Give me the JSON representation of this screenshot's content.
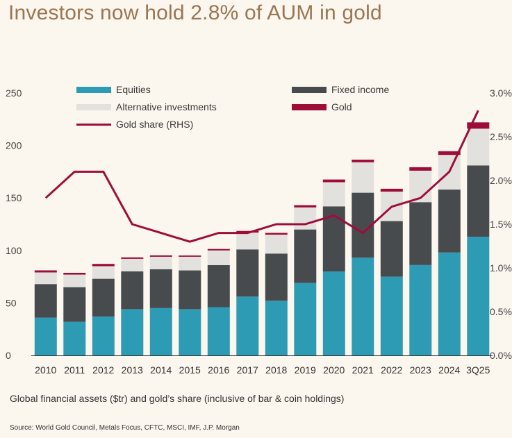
{
  "title": "Investors now hold 2.8% of AUM in gold",
  "caption": "Global financial assets ($tr) and gold’s share (inclusive of bar & coin holdings)",
  "source": "Source: World Gold Council, Metals Focus, CFTC, MSCI, IMF, J.P. Morgan",
  "colors": {
    "equities": "#2e9bb5",
    "fixed_income": "#484b4e",
    "alternatives": "#e3e1de",
    "gold": "#9e0d3a",
    "gold_share": "#9e0d3a",
    "background": "#fbf6ee",
    "title": "#9a7652"
  },
  "legend": [
    {
      "key": "equities",
      "label": "Equities",
      "kind": "bar"
    },
    {
      "key": "fixed_income",
      "label": "Fixed income",
      "kind": "bar"
    },
    {
      "key": "alternatives",
      "label": "Alternative investments",
      "kind": "bar"
    },
    {
      "key": "gold",
      "label": "Gold",
      "kind": "bar"
    },
    {
      "key": "gold_share",
      "label": "Gold share (RHS)",
      "kind": "line"
    }
  ],
  "chart_data": {
    "type": "bar",
    "stacked": true,
    "categories": [
      "2010",
      "2011",
      "2012",
      "2013",
      "2014",
      "2015",
      "2016",
      "2017",
      "2018",
      "2019",
      "2020",
      "2021",
      "2022",
      "2023",
      "2024",
      "3Q25"
    ],
    "series": [
      {
        "name": "Equities",
        "key": "equities",
        "values": [
          36,
          32,
          37,
          44,
          45,
          44,
          46,
          56,
          52,
          69,
          80,
          93,
          75,
          86,
          98,
          113
        ]
      },
      {
        "name": "Fixed income",
        "key": "fixed_income",
        "values": [
          32,
          33,
          36,
          36,
          37,
          37,
          40,
          45,
          45,
          51,
          62,
          62,
          53,
          60,
          60,
          68
        ]
      },
      {
        "name": "Alternative investments",
        "key": "alternatives",
        "values": [
          11,
          12,
          12,
          12,
          12,
          13,
          14,
          16,
          18,
          21,
          23,
          29,
          28,
          30,
          33,
          35
        ]
      },
      {
        "name": "Gold",
        "key": "gold",
        "values": [
          2.0,
          1.7,
          2.2,
          1.4,
          1.3,
          1.2,
          1.4,
          1.6,
          1.7,
          2.1,
          2.6,
          2.5,
          2.8,
          3.3,
          3.5,
          6.0
        ]
      },
      {
        "name": "Gold share (RHS)",
        "key": "gold_share",
        "axis": "right",
        "type": "line",
        "values": [
          1.8,
          2.1,
          2.1,
          1.5,
          1.4,
          1.3,
          1.4,
          1.4,
          1.5,
          1.5,
          1.6,
          1.4,
          1.7,
          1.8,
          2.1,
          2.8
        ]
      }
    ],
    "left_axis": {
      "min": 0,
      "max": 250,
      "ticks": [
        0,
        50,
        100,
        150,
        200,
        250
      ],
      "tick_labels": [
        "0",
        "50",
        "100",
        "150",
        "200",
        "250"
      ]
    },
    "right_axis": {
      "min": 0,
      "max": 3.0,
      "ticks": [
        0,
        0.5,
        1.0,
        1.5,
        2.0,
        2.5,
        3.0
      ],
      "tick_labels": [
        "0.0%",
        "0.5%",
        "1.0%",
        "1.5%",
        "2.0%",
        "2.5%",
        "3.0%"
      ]
    },
    "grid": false,
    "legend_position": "top"
  }
}
